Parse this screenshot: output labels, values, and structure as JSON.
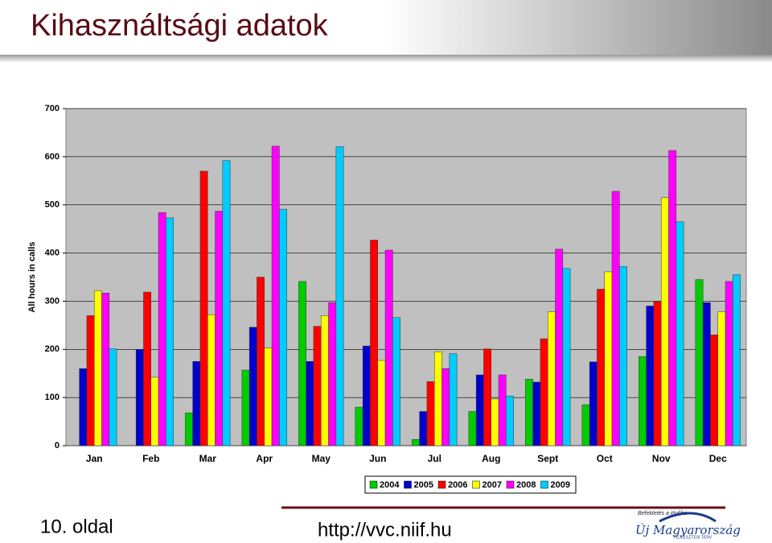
{
  "title": "Kihasználtsági adatok",
  "footer": {
    "page": "10. oldal",
    "url": "http://vvc.niif.hu",
    "logo": {
      "tagline": "Befektetés a jövőbe",
      "name": "Új Magyarország",
      "subtitle": "FEJLESZTÉSI TERV"
    }
  },
  "chart_data": {
    "type": "bar",
    "y_label": "All hours in calls",
    "categories": [
      "Jan",
      "Feb",
      "Mar",
      "Apr",
      "May",
      "Jun",
      "Jul",
      "Aug",
      "Sept",
      "Oct",
      "Nov",
      "Dec"
    ],
    "series": [
      {
        "name": "2004",
        "color": "#00cc00",
        "values": [
          null,
          null,
          68,
          157,
          341,
          80,
          13,
          71,
          138,
          85,
          185,
          345
        ]
      },
      {
        "name": "2005",
        "color": "#0000cc",
        "values": [
          160,
          200,
          175,
          246,
          175,
          207,
          71,
          147,
          132,
          174,
          290,
          297
        ]
      },
      {
        "name": "2006",
        "color": "#ff0000",
        "values": [
          270,
          319,
          570,
          350,
          248,
          427,
          133,
          201,
          222,
          325,
          299,
          230
        ]
      },
      {
        "name": "2007",
        "color": "#ffff00",
        "values": [
          322,
          142,
          272,
          203,
          270,
          177,
          195,
          97,
          278,
          361,
          515,
          278
        ]
      },
      {
        "name": "2008",
        "color": "#ff00ff",
        "values": [
          317,
          484,
          487,
          622,
          297,
          406,
          160,
          147,
          408,
          528,
          613,
          341
        ]
      },
      {
        "name": "2009",
        "color": "#00ccff",
        "values": [
          201,
          473,
          592,
          491,
          621,
          266,
          191,
          103,
          368,
          372,
          465,
          355
        ]
      }
    ],
    "ylim": [
      0,
      700
    ],
    "yticks": [
      0,
      100,
      200,
      300,
      400,
      500,
      600,
      700
    ],
    "grid": true,
    "legend": "bottom"
  }
}
